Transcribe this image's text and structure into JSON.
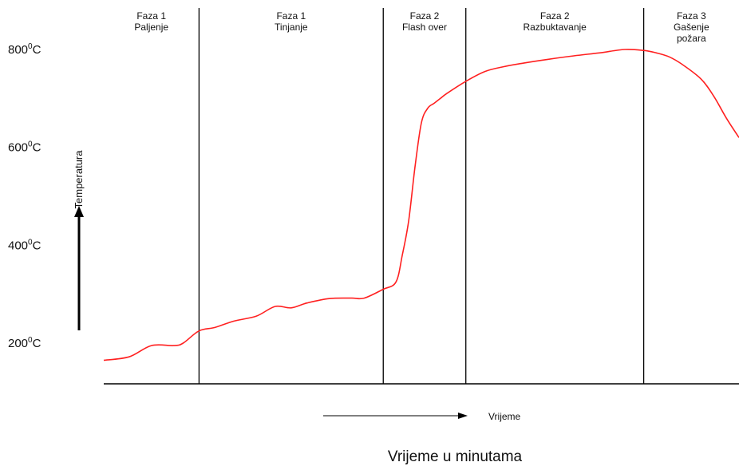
{
  "chart_data": {
    "type": "line",
    "title": "",
    "ylabel": "Temperatura",
    "xlabel": "Vrijeme",
    "caption": "Vrijeme u minutama",
    "y_ticks": [
      {
        "value": 200,
        "base": "200",
        "sup": "0",
        "tail": "C"
      },
      {
        "value": 400,
        "base": "400",
        "sup": "0",
        "tail": "C"
      },
      {
        "value": 600,
        "base": "600",
        "sup": "0",
        "tail": "C"
      },
      {
        "value": 800,
        "base": "800",
        "sup": "0",
        "tail": "C"
      }
    ],
    "ylim": [
      150,
      850
    ],
    "xlim": [
      0,
      100
    ],
    "phases": [
      {
        "line1": "Faza 1",
        "line2": "Paljenje",
        "line3": "",
        "start": 0,
        "end": 15
      },
      {
        "line1": "Faza 1",
        "line2": "Tinjanje",
        "line3": "",
        "start": 15,
        "end": 44
      },
      {
        "line1": "Faza 2",
        "line2": "Flash over",
        "line3": "",
        "start": 44,
        "end": 57
      },
      {
        "line1": "Faza 2",
        "line2": "Razbuktavanje",
        "line3": "",
        "start": 57,
        "end": 85
      },
      {
        "line1": "Faza 3",
        "line2": "Gašenje",
        "line3": "požara",
        "start": 85,
        "end": 100
      }
    ],
    "series": [
      {
        "color": "#ff2020",
        "x": [
          0,
          4,
          7.5,
          11,
          12.5,
          15,
          17.5,
          20.5,
          24,
          27,
          29.5,
          32,
          35.5,
          39,
          41,
          44,
          46,
          47,
          48,
          49,
          50,
          51,
          52,
          53,
          54,
          57,
          60,
          63,
          66,
          70,
          74,
          78,
          82,
          85,
          87,
          89,
          91,
          94,
          96,
          98,
          100
        ],
        "y": [
          165,
          172,
          195,
          195,
          200,
          225,
          232,
          245,
          255,
          275,
          272,
          282,
          291,
          292,
          292,
          310,
          325,
          380,
          450,
          560,
          650,
          680,
          690,
          700,
          710,
          735,
          755,
          765,
          772,
          780,
          787,
          793,
          800,
          798,
          793,
          785,
          770,
          740,
          705,
          660,
          620
        ]
      }
    ]
  }
}
